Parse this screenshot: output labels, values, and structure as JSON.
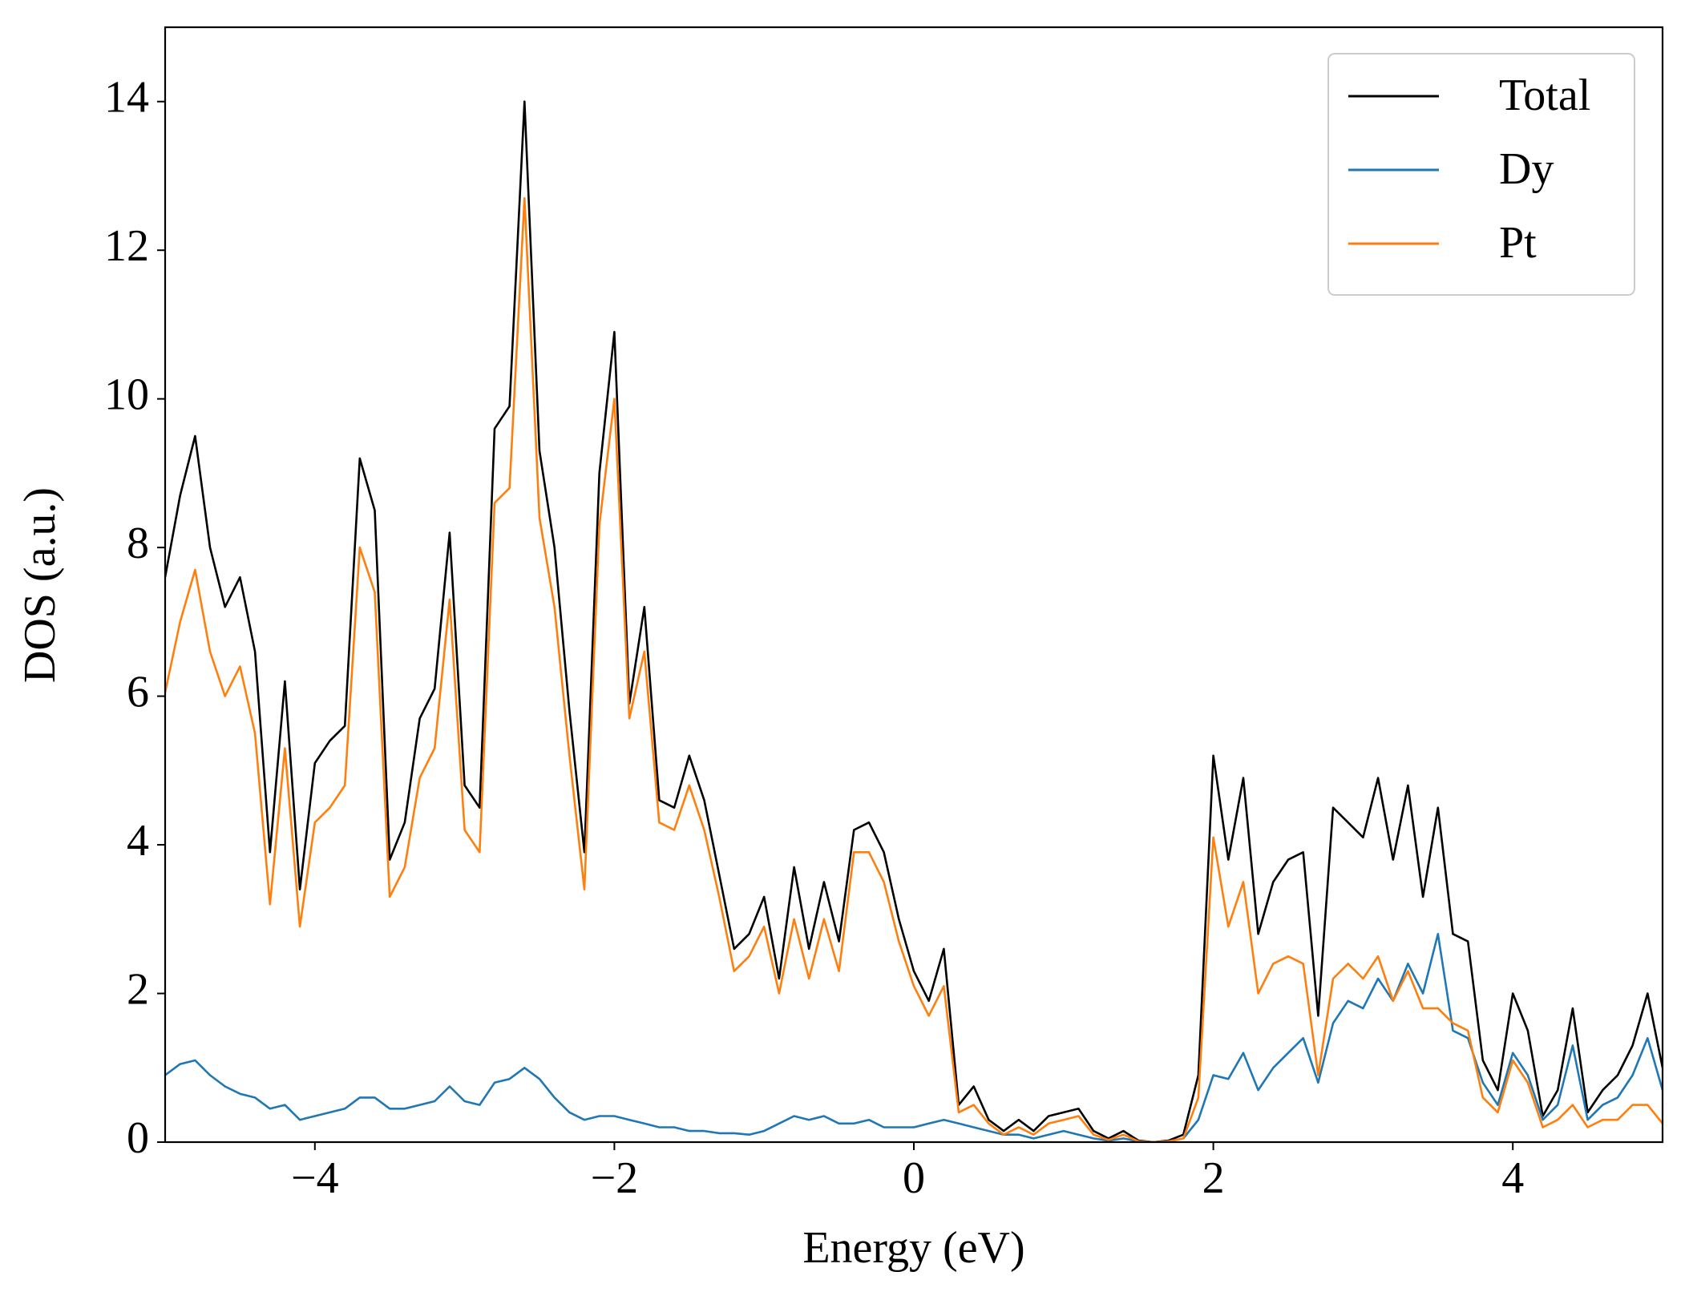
{
  "chart_data": {
    "type": "line",
    "x_label": "Energy (eV)",
    "y_label": "DOS (a.u.)",
    "xlim": [
      -5,
      5
    ],
    "ylim": [
      0,
      15
    ],
    "xticks": [
      {
        "value": -4,
        "label": "−4"
      },
      {
        "value": -2,
        "label": "−2"
      },
      0,
      2,
      4
    ],
    "yticks": [
      0,
      2,
      4,
      6,
      8,
      10,
      12,
      14
    ],
    "legend": "upper right",
    "x": [
      -5.0,
      -4.9,
      -4.8,
      -4.7,
      -4.6,
      -4.5,
      -4.4,
      -4.3,
      -4.2,
      -4.1,
      -4.0,
      -3.9,
      -3.8,
      -3.7,
      -3.6,
      -3.5,
      -3.4,
      -3.3,
      -3.2,
      -3.1,
      -3.0,
      -2.9,
      -2.8,
      -2.7,
      -2.6,
      -2.5,
      -2.4,
      -2.3,
      -2.2,
      -2.1,
      -2.0,
      -1.9,
      -1.8,
      -1.7,
      -1.6,
      -1.5,
      -1.4,
      -1.3,
      -1.2,
      -1.1,
      -1.0,
      -0.9,
      -0.8,
      -0.7,
      -0.6,
      -0.5,
      -0.4,
      -0.3,
      -0.2,
      -0.1,
      0.0,
      0.1,
      0.2,
      0.3,
      0.4,
      0.5,
      0.6,
      0.7,
      0.8,
      0.9,
      1.0,
      1.1,
      1.2,
      1.3,
      1.4,
      1.5,
      1.6,
      1.7,
      1.8,
      1.9,
      2.0,
      2.1,
      2.2,
      2.3,
      2.4,
      2.5,
      2.6,
      2.7,
      2.8,
      2.9,
      3.0,
      3.1,
      3.2,
      3.3,
      3.4,
      3.5,
      3.6,
      3.7,
      3.8,
      3.9,
      4.0,
      4.1,
      4.2,
      4.3,
      4.4,
      4.5,
      4.6,
      4.7,
      4.8,
      4.9,
      5.0
    ],
    "series": [
      {
        "name": "Total",
        "color": "#000000",
        "values": [
          7.6,
          8.7,
          9.5,
          8.0,
          7.2,
          7.6,
          6.6,
          3.9,
          6.2,
          3.4,
          5.1,
          5.4,
          5.6,
          9.2,
          8.5,
          3.8,
          4.3,
          5.7,
          6.1,
          8.2,
          4.8,
          4.5,
          9.6,
          9.9,
          14.0,
          9.3,
          8.0,
          5.8,
          3.9,
          9.0,
          10.9,
          5.9,
          7.2,
          4.6,
          4.5,
          5.2,
          4.6,
          3.6,
          2.6,
          2.8,
          3.3,
          2.2,
          3.7,
          2.6,
          3.5,
          2.7,
          4.2,
          4.3,
          3.9,
          3.0,
          2.3,
          1.9,
          2.6,
          0.5,
          0.75,
          0.3,
          0.15,
          0.3,
          0.15,
          0.35,
          0.4,
          0.45,
          0.15,
          0.05,
          0.15,
          0.02,
          0.0,
          0.02,
          0.1,
          0.9,
          5.2,
          3.8,
          4.9,
          2.8,
          3.5,
          3.8,
          3.9,
          1.7,
          4.5,
          4.3,
          4.1,
          4.9,
          3.8,
          4.8,
          3.3,
          4.5,
          2.8,
          2.7,
          1.1,
          0.7,
          2.0,
          1.5,
          0.35,
          0.7,
          1.8,
          0.4,
          0.7,
          0.9,
          1.3,
          2.0,
          1.0
        ]
      },
      {
        "name": "Dy",
        "color": "#1f77b4",
        "values": [
          0.9,
          1.05,
          1.1,
          0.9,
          0.75,
          0.65,
          0.6,
          0.45,
          0.5,
          0.3,
          0.35,
          0.4,
          0.45,
          0.6,
          0.6,
          0.45,
          0.45,
          0.5,
          0.55,
          0.75,
          0.55,
          0.5,
          0.8,
          0.85,
          1.0,
          0.85,
          0.6,
          0.4,
          0.3,
          0.35,
          0.35,
          0.3,
          0.25,
          0.2,
          0.2,
          0.15,
          0.15,
          0.12,
          0.12,
          0.1,
          0.15,
          0.25,
          0.35,
          0.3,
          0.35,
          0.25,
          0.25,
          0.3,
          0.2,
          0.2,
          0.2,
          0.25,
          0.3,
          0.25,
          0.2,
          0.15,
          0.1,
          0.1,
          0.05,
          0.1,
          0.15,
          0.1,
          0.05,
          0.02,
          0.05,
          0.01,
          0.0,
          0.01,
          0.05,
          0.3,
          0.9,
          0.85,
          1.2,
          0.7,
          1.0,
          1.2,
          1.4,
          0.8,
          1.6,
          1.9,
          1.8,
          2.2,
          1.9,
          2.4,
          2.0,
          2.8,
          1.5,
          1.4,
          0.8,
          0.5,
          1.2,
          0.9,
          0.3,
          0.5,
          1.3,
          0.3,
          0.5,
          0.6,
          0.9,
          1.4,
          0.7
        ]
      },
      {
        "name": "Pt",
        "color": "#ff7f0e",
        "values": [
          6.05,
          7.0,
          7.7,
          6.6,
          6.0,
          6.4,
          5.5,
          3.2,
          5.3,
          2.9,
          4.3,
          4.5,
          4.8,
          8.0,
          7.4,
          3.3,
          3.7,
          4.9,
          5.3,
          7.3,
          4.2,
          3.9,
          8.6,
          8.8,
          12.7,
          8.4,
          7.2,
          5.2,
          3.4,
          8.3,
          10.0,
          5.7,
          6.6,
          4.3,
          4.2,
          4.8,
          4.2,
          3.3,
          2.3,
          2.5,
          2.9,
          2.0,
          3.0,
          2.2,
          3.0,
          2.3,
          3.9,
          3.9,
          3.5,
          2.7,
          2.1,
          1.7,
          2.1,
          0.4,
          0.5,
          0.25,
          0.1,
          0.2,
          0.1,
          0.25,
          0.3,
          0.35,
          0.1,
          0.03,
          0.1,
          0.01,
          0.0,
          0.01,
          0.05,
          0.6,
          4.1,
          2.9,
          3.5,
          2.0,
          2.4,
          2.5,
          2.4,
          0.9,
          2.2,
          2.4,
          2.2,
          2.5,
          1.9,
          2.3,
          1.8,
          1.8,
          1.6,
          1.5,
          0.6,
          0.4,
          1.1,
          0.8,
          0.2,
          0.3,
          0.5,
          0.2,
          0.3,
          0.3,
          0.5,
          0.5,
          0.25
        ]
      }
    ]
  }
}
